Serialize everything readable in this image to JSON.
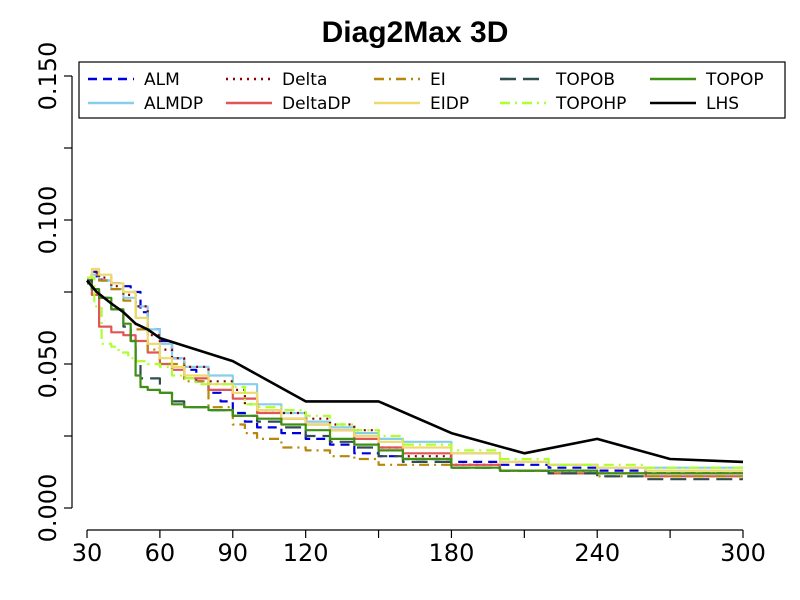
{
  "chart_data": {
    "type": "line",
    "title": "Diag2Max 3D",
    "xlabel": "",
    "ylabel": "",
    "xlim": [
      30,
      300
    ],
    "ylim": [
      0,
      0.15
    ],
    "x_ticks": [
      30,
      60,
      90,
      120,
      180,
      240,
      300
    ],
    "x_tick_labels": [
      "30",
      "60",
      "90",
      "120",
      "180",
      "240",
      "300"
    ],
    "y_ticks": [
      0,
      0.05,
      0.1,
      0.15
    ],
    "y_tick_labels": [
      "0.000",
      "0.050",
      "0.100",
      "0.150"
    ],
    "grid": false,
    "legend_position": "top",
    "series": [
      {
        "name": "ALM",
        "color": "#0000dd",
        "dash": "dash",
        "x": [
          30,
          32,
          34,
          36,
          40,
          44,
          48,
          52,
          55,
          60,
          65,
          70,
          75,
          80,
          85,
          90,
          95,
          100,
          110,
          120,
          130,
          140,
          150,
          160,
          180,
          200,
          220,
          240,
          260,
          300
        ],
        "y": [
          0.079,
          0.082,
          0.08,
          0.079,
          0.078,
          0.077,
          0.075,
          0.068,
          0.062,
          0.058,
          0.052,
          0.048,
          0.044,
          0.04,
          0.037,
          0.033,
          0.03,
          0.028,
          0.026,
          0.024,
          0.022,
          0.019,
          0.018,
          0.017,
          0.016,
          0.015,
          0.014,
          0.013,
          0.012,
          0.012
        ]
      },
      {
        "name": "ALMDP",
        "color": "#87ceeb",
        "dash": "solid",
        "x": [
          30,
          32,
          35,
          40,
          45,
          50,
          55,
          60,
          65,
          70,
          80,
          90,
          100,
          110,
          120,
          130,
          140,
          150,
          160,
          180,
          200,
          220,
          240,
          260,
          300
        ],
        "y": [
          0.079,
          0.081,
          0.079,
          0.076,
          0.073,
          0.07,
          0.062,
          0.057,
          0.052,
          0.049,
          0.046,
          0.043,
          0.036,
          0.033,
          0.03,
          0.028,
          0.026,
          0.024,
          0.023,
          0.019,
          0.016,
          0.015,
          0.014,
          0.014,
          0.014
        ]
      },
      {
        "name": "Delta",
        "color": "#8b0000",
        "dash": "dot",
        "x": [
          30,
          32,
          35,
          40,
          45,
          50,
          55,
          60,
          65,
          70,
          80,
          90,
          95,
          100,
          110,
          120,
          130,
          140,
          150,
          160,
          180,
          200,
          220,
          240,
          260,
          300
        ],
        "y": [
          0.08,
          0.082,
          0.08,
          0.077,
          0.074,
          0.07,
          0.06,
          0.055,
          0.052,
          0.049,
          0.044,
          0.041,
          0.036,
          0.034,
          0.033,
          0.031,
          0.029,
          0.027,
          0.021,
          0.018,
          0.015,
          0.013,
          0.013,
          0.012,
          0.012,
          0.012
        ]
      },
      {
        "name": "DeltaDP",
        "color": "#e05555",
        "dash": "solid",
        "x": [
          30,
          32,
          35,
          40,
          45,
          50,
          55,
          60,
          65,
          70,
          80,
          90,
          100,
          110,
          120,
          130,
          140,
          150,
          160,
          180,
          200,
          220,
          240,
          260,
          300
        ],
        "y": [
          0.079,
          0.074,
          0.063,
          0.061,
          0.06,
          0.058,
          0.054,
          0.05,
          0.048,
          0.045,
          0.041,
          0.038,
          0.033,
          0.031,
          0.029,
          0.027,
          0.024,
          0.021,
          0.019,
          0.015,
          0.013,
          0.012,
          0.012,
          0.011,
          0.011
        ]
      },
      {
        "name": "EI",
        "color": "#b8860b",
        "dash": "dashdot",
        "x": [
          30,
          32,
          35,
          40,
          45,
          50,
          55,
          60,
          70,
          80,
          90,
          95,
          100,
          110,
          120,
          130,
          140,
          150,
          160,
          180,
          200,
          220,
          240,
          260,
          300
        ],
        "y": [
          0.079,
          0.081,
          0.079,
          0.076,
          0.072,
          0.062,
          0.055,
          0.05,
          0.044,
          0.035,
          0.029,
          0.026,
          0.024,
          0.021,
          0.02,
          0.018,
          0.017,
          0.015,
          0.015,
          0.014,
          0.013,
          0.012,
          0.011,
          0.011,
          0.011
        ]
      },
      {
        "name": "EIDP",
        "color": "#eed96c",
        "dash": "solid",
        "x": [
          30,
          32,
          35,
          40,
          45,
          50,
          55,
          60,
          65,
          70,
          80,
          90,
          100,
          110,
          120,
          130,
          140,
          150,
          160,
          180,
          200,
          220,
          240,
          260,
          300
        ],
        "y": [
          0.08,
          0.083,
          0.081,
          0.078,
          0.075,
          0.066,
          0.057,
          0.052,
          0.049,
          0.046,
          0.043,
          0.04,
          0.034,
          0.031,
          0.029,
          0.027,
          0.025,
          0.023,
          0.021,
          0.019,
          0.016,
          0.015,
          0.014,
          0.013,
          0.013
        ]
      },
      {
        "name": "TOPOB",
        "color": "#2f4f4f",
        "dash": "longdash",
        "x": [
          30,
          32,
          35,
          40,
          45,
          48,
          50,
          52,
          55,
          60,
          65,
          70,
          80,
          90,
          100,
          110,
          120,
          130,
          140,
          150,
          160,
          180,
          200,
          220,
          240,
          260,
          300
        ],
        "y": [
          0.079,
          0.076,
          0.073,
          0.069,
          0.063,
          0.058,
          0.05,
          0.045,
          0.045,
          0.04,
          0.037,
          0.035,
          0.034,
          0.032,
          0.03,
          0.028,
          0.025,
          0.023,
          0.021,
          0.018,
          0.016,
          0.014,
          0.013,
          0.012,
          0.011,
          0.01,
          0.01
        ]
      },
      {
        "name": "TOPOHP",
        "color": "#adff2f",
        "dash": "dashdot",
        "x": [
          30,
          33,
          36,
          40,
          43,
          47,
          50,
          55,
          60,
          65,
          70,
          75,
          80,
          90,
          95,
          100,
          110,
          120,
          130,
          140,
          150,
          160,
          180,
          200,
          220,
          240,
          260,
          300
        ],
        "y": [
          0.08,
          0.07,
          0.057,
          0.056,
          0.054,
          0.052,
          0.051,
          0.05,
          0.049,
          0.046,
          0.045,
          0.043,
          0.043,
          0.042,
          0.036,
          0.035,
          0.034,
          0.032,
          0.029,
          0.027,
          0.025,
          0.022,
          0.02,
          0.017,
          0.015,
          0.015,
          0.014,
          0.013
        ]
      },
      {
        "name": "TOPOP",
        "color": "#3f8f12",
        "dash": "solid",
        "x": [
          30,
          32,
          35,
          40,
          45,
          48,
          50,
          52,
          55,
          60,
          65,
          70,
          80,
          90,
          100,
          110,
          120,
          130,
          140,
          150,
          160,
          180,
          200,
          220,
          240,
          260,
          300
        ],
        "y": [
          0.078,
          0.076,
          0.073,
          0.069,
          0.064,
          0.058,
          0.046,
          0.042,
          0.041,
          0.04,
          0.036,
          0.035,
          0.034,
          0.032,
          0.031,
          0.029,
          0.027,
          0.024,
          0.022,
          0.02,
          0.017,
          0.014,
          0.013,
          0.013,
          0.012,
          0.012,
          0.012
        ]
      },
      {
        "name": "LHS",
        "color": "#000000",
        "dash": "solid",
        "x": [
          30,
          34,
          40,
          45,
          50,
          55,
          60,
          90,
          120,
          150,
          180,
          210,
          240,
          270,
          300
        ],
        "y": [
          0.079,
          0.075,
          0.071,
          0.068,
          0.064,
          0.062,
          0.059,
          0.051,
          0.037,
          0.037,
          0.026,
          0.019,
          0.024,
          0.017,
          0.016
        ]
      }
    ]
  }
}
